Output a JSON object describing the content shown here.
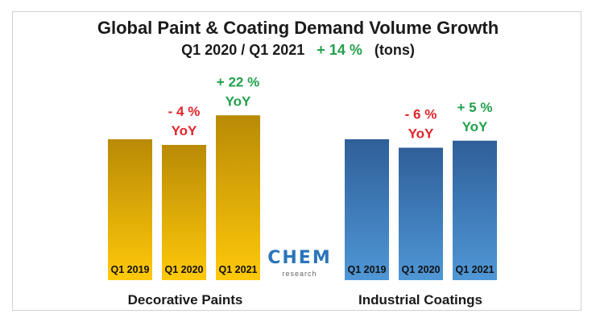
{
  "chart_data": {
    "type": "bar",
    "title": "Global Paint & Coating Demand Volume Growth",
    "subtitle": {
      "period": "Q1 2020 / Q1 2021",
      "growth": "+ 14 %",
      "unit": "(tons)"
    },
    "groups": [
      {
        "name": "Decorative Paints",
        "color_top": "#b98a06",
        "color_bottom": "#ffc90a",
        "bars": [
          {
            "category": "Q1 2019",
            "value": 100,
            "change": "",
            "yoy": ""
          },
          {
            "category": "Q1 2020",
            "value": 96,
            "change": "- 4 %",
            "yoy": "YoY",
            "change_color": "#e0242c"
          },
          {
            "category": "Q1 2021",
            "value": 117,
            "change": "+ 22 %",
            "yoy": "YoY",
            "change_color": "#22a04b"
          }
        ]
      },
      {
        "name": "Industrial Coatings",
        "color_top": "#2f5f99",
        "color_bottom": "#4f97d6",
        "bars": [
          {
            "category": "Q1 2019",
            "value": 100,
            "change": "",
            "yoy": ""
          },
          {
            "category": "Q1 2020",
            "value": 94,
            "change": "- 6 %",
            "yoy": "YoY",
            "change_color": "#e0242c"
          },
          {
            "category": "Q1 2021",
            "value": 99,
            "change": "+ 5 %",
            "yoy": "YoY",
            "change_color": "#22a04b"
          }
        ]
      }
    ],
    "grid": false,
    "legend": "none"
  },
  "logo": {
    "main": "CHEM",
    "sub": "research"
  }
}
